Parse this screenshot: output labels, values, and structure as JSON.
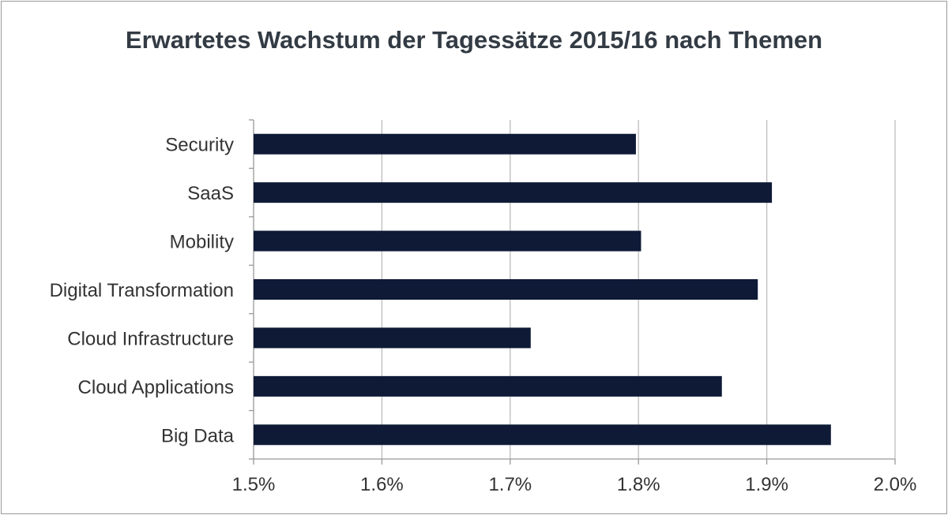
{
  "chart_data": {
    "type": "bar",
    "orientation": "horizontal",
    "title": "Erwartetes Wachstum der Tagessätze 2015/16 nach Themen",
    "categories": [
      "Security",
      "SaaS",
      "Mobility",
      "Digital Transformation",
      "Cloud Infrastructure",
      "Cloud Applications",
      "Big Data"
    ],
    "values": [
      1.798,
      1.904,
      1.802,
      1.893,
      1.716,
      1.865,
      1.95
    ],
    "xlim": [
      1.5,
      2.0
    ],
    "xticks": [
      "1.5%",
      "1.6%",
      "1.7%",
      "1.8%",
      "1.9%",
      "2.0%"
    ],
    "xtick_values": [
      1.5,
      1.6,
      1.7,
      1.8,
      1.9,
      2.0
    ],
    "grid": "vertical",
    "bar_color": "#0e1a36",
    "xlabel": "",
    "ylabel": ""
  }
}
